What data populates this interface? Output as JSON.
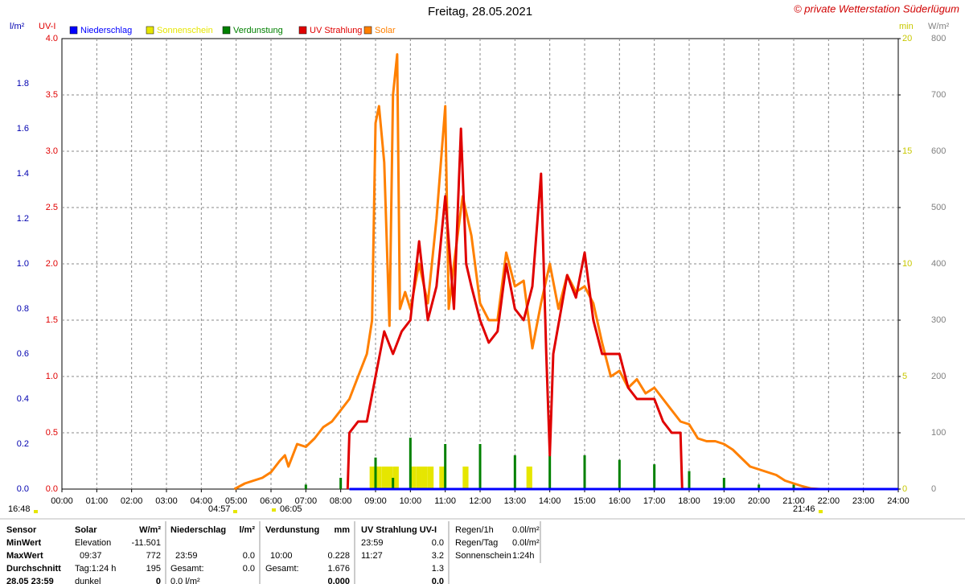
{
  "chart_data": {
    "type": "line",
    "title": "Freitag, 28.05.2021",
    "credit": "© private Wetterstation Süderlügum",
    "grid": true,
    "xlim": [
      0,
      24
    ],
    "xticks": [
      {
        "value": 0,
        "label": "00:00"
      },
      {
        "value": 1,
        "label": "01:00"
      },
      {
        "value": 2,
        "label": "02:00"
      },
      {
        "value": 3,
        "label": "03:00"
      },
      {
        "value": 4,
        "label": "04:00"
      },
      {
        "value": 5,
        "label": "05:00"
      },
      {
        "value": 6,
        "label": "06:00"
      },
      {
        "value": 7,
        "label": "07:00"
      },
      {
        "value": 8,
        "label": "08:00"
      },
      {
        "value": 9,
        "label": "09:00"
      },
      {
        "value": 10,
        "label": "10:00"
      },
      {
        "value": 11,
        "label": "11:00"
      },
      {
        "value": 12,
        "label": "12:00"
      },
      {
        "value": 13,
        "label": "13:00"
      },
      {
        "value": 14,
        "label": "14:00"
      },
      {
        "value": 15,
        "label": "15:00"
      },
      {
        "value": 16,
        "label": "16:00"
      },
      {
        "value": 17,
        "label": "17:00"
      },
      {
        "value": 18,
        "label": "18:00"
      },
      {
        "value": 19,
        "label": "19:00"
      },
      {
        "value": 20,
        "label": "20:00"
      },
      {
        "value": 21,
        "label": "21:00"
      },
      {
        "value": 22,
        "label": "22:00"
      },
      {
        "value": 23,
        "label": "23:00"
      },
      {
        "value": 24,
        "label": "24:00"
      }
    ],
    "ylabel": "l/m²",
    "ycolor": "#0000b0",
    "ylim": [
      0,
      2
    ],
    "yticks": [
      {
        "value": 0,
        "label": "0.0"
      },
      0.2,
      0.4,
      0.6,
      0.8,
      {
        "value": 1,
        "label": "1.0"
      },
      1.2,
      1.4,
      1.6,
      1.8
    ],
    "y2label": "UV-I",
    "y2color": "#e00000",
    "y2lim": [
      0,
      4
    ],
    "y2ticks": [
      {
        "value": 0,
        "label": "0.0"
      },
      0.5,
      {
        "value": 1,
        "label": "1.0"
      },
      1.5,
      {
        "value": 2,
        "label": "2.0"
      },
      2.5,
      {
        "value": 3,
        "label": "3.0"
      },
      3.5,
      {
        "value": 4,
        "label": "4.0"
      }
    ],
    "y3label": "min",
    "y3color": "#c8c800",
    "y3lim": [
      0,
      20
    ],
    "y3ticks": [
      0,
      5,
      10,
      15,
      20
    ],
    "y4label": "W/m²",
    "y4color": "#808080",
    "y4lim": [
      0,
      800
    ],
    "y4ticks": [
      0,
      100,
      200,
      300,
      400,
      500,
      600,
      700,
      800
    ],
    "annotations": [
      "16:48",
      "04:57",
      "06:05",
      "21:46"
    ],
    "series": [
      {
        "name": "Niederschlag",
        "color": "#0000ff",
        "type": "line",
        "axis": "y",
        "x": [
          8.25,
          24
        ],
        "values": [
          0,
          0
        ]
      },
      {
        "name": "Sonnenschein",
        "color": "#e6e600",
        "type": "bar",
        "axis": "y3",
        "x": [
          8.83,
          9.0,
          9.17,
          9.33,
          9.5,
          10.0,
          10.17,
          10.33,
          10.5,
          10.83,
          11.5,
          13.33
        ],
        "values": [
          1,
          1,
          1,
          1,
          1,
          1,
          1,
          1,
          1,
          1,
          1,
          1
        ]
      },
      {
        "name": "Verdunstung",
        "color": "#008000",
        "type": "bar",
        "axis": "y",
        "x": [
          7.0,
          8.0,
          9.0,
          9.5,
          10.0,
          11.0,
          12.0,
          13.0,
          14.0,
          15.0,
          16.0,
          17.0,
          18.0,
          19.0,
          20.0,
          21.0
        ],
        "values": [
          0.02,
          0.05,
          0.14,
          0.05,
          0.228,
          0.2,
          0.2,
          0.15,
          0.15,
          0.15,
          0.13,
          0.11,
          0.08,
          0.05,
          0.02,
          0.02
        ]
      },
      {
        "name": "UV Strahlung",
        "color": "#e00000",
        "type": "line",
        "axis": "y2",
        "x": [
          8.2,
          8.25,
          8.5,
          8.75,
          9.0,
          9.25,
          9.5,
          9.75,
          10.0,
          10.25,
          10.5,
          10.75,
          11.0,
          11.25,
          11.45,
          11.6,
          11.75,
          12.0,
          12.25,
          12.5,
          12.75,
          13.0,
          13.25,
          13.5,
          13.75,
          13.9,
          14.0,
          14.1,
          14.5,
          14.75,
          15.0,
          15.25,
          15.5,
          15.75,
          16.0,
          16.25,
          16.5,
          16.75,
          17.0,
          17.25,
          17.5,
          17.75,
          17.8,
          18.0
        ],
        "values": [
          0,
          0.5,
          0.6,
          0.6,
          1.0,
          1.4,
          1.2,
          1.4,
          1.5,
          2.2,
          1.5,
          1.8,
          2.6,
          1.6,
          3.2,
          2.0,
          1.8,
          1.5,
          1.3,
          1.4,
          2.0,
          1.6,
          1.5,
          1.8,
          2.8,
          1.2,
          0.3,
          1.2,
          1.9,
          1.7,
          2.1,
          1.5,
          1.2,
          1.2,
          1.2,
          0.9,
          0.8,
          0.8,
          0.8,
          0.6,
          0.5,
          0.5,
          0,
          0
        ]
      },
      {
        "name": "Solar",
        "color": "#ff8000",
        "type": "line",
        "axis": "y4",
        "x": [
          4.95,
          5.25,
          5.5,
          5.75,
          6.0,
          6.25,
          6.4,
          6.5,
          6.75,
          7.0,
          7.25,
          7.5,
          7.75,
          8.0,
          8.25,
          8.5,
          8.75,
          8.9,
          9.0,
          9.1,
          9.25,
          9.4,
          9.5,
          9.62,
          9.7,
          9.85,
          10.0,
          10.25,
          10.5,
          10.75,
          11.0,
          11.1,
          11.25,
          11.5,
          11.75,
          12.0,
          12.25,
          12.5,
          12.75,
          13.0,
          13.25,
          13.5,
          13.75,
          14.0,
          14.25,
          14.5,
          14.75,
          15.0,
          15.25,
          15.5,
          15.75,
          16.0,
          16.25,
          16.5,
          16.75,
          17.0,
          17.25,
          17.5,
          17.75,
          18.0,
          18.25,
          18.5,
          18.75,
          19.0,
          19.25,
          19.5,
          19.75,
          20.0,
          20.25,
          20.5,
          20.75,
          21.0,
          21.25,
          21.5,
          21.77
        ],
        "values": [
          0,
          10,
          15,
          20,
          30,
          50,
          60,
          40,
          80,
          75,
          90,
          110,
          120,
          140,
          160,
          200,
          240,
          300,
          650,
          680,
          580,
          290,
          700,
          772,
          320,
          350,
          320,
          400,
          330,
          480,
          680,
          320,
          400,
          520,
          450,
          330,
          300,
          300,
          420,
          360,
          370,
          250,
          330,
          400,
          320,
          380,
          350,
          360,
          330,
          260,
          200,
          210,
          180,
          195,
          170,
          180,
          160,
          140,
          120,
          115,
          90,
          85,
          85,
          80,
          70,
          55,
          40,
          35,
          30,
          25,
          15,
          10,
          5,
          1,
          0
        ]
      }
    ]
  },
  "footer": {
    "sensor": [
      "Sensor",
      "MinWert",
      "MaxWert",
      "Durchschnitt",
      "28.05  23:59"
    ],
    "blocks": [
      {
        "rows": [
          [
            "Solar",
            "W/m²"
          ],
          [
            "Elevation",
            "-11.501"
          ],
          [
            "09:37",
            "772"
          ],
          [
            "Tag:1:24 h",
            "195"
          ],
          [
            "dunkel",
            "0"
          ]
        ]
      },
      {
        "rows": [
          [
            "Niederschlag",
            "l/m²"
          ],
          null,
          [
            "23:59",
            "0.0"
          ],
          [
            "Gesamt:",
            "0.0"
          ],
          [
            "0.0 l/m²",
            null
          ]
        ]
      },
      {
        "rows": [
          [
            "Verdunstung",
            "mm"
          ],
          null,
          [
            "10:00",
            "0.228"
          ],
          [
            "Gesamt:",
            "1.676"
          ],
          [
            null,
            "0.000"
          ]
        ]
      },
      {
        "rows": [
          [
            "UV Strahlung UV-I",
            null
          ],
          [
            "23:59",
            "0.0"
          ],
          [
            "11:27",
            "3.2"
          ],
          [
            null,
            "1.3"
          ],
          [
            null,
            "0.0"
          ]
        ]
      }
    ],
    "extra": [
      [
        "Regen/1h",
        "0.0l/m²"
      ],
      [
        "Regen/Tag",
        "0.0l/m²"
      ],
      [
        "Sonnenschein",
        "1:24h"
      ]
    ]
  }
}
